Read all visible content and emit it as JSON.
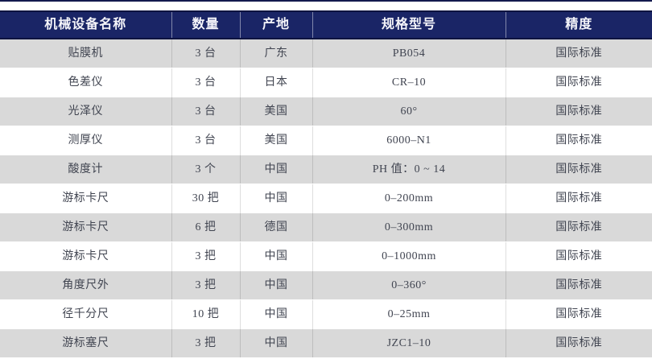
{
  "table": {
    "columns": [
      "机械设备名称",
      "数量",
      "产地",
      "规格型号",
      "精度"
    ],
    "rows": [
      [
        "贴膜机",
        "3 台",
        "广东",
        "PB054",
        "国际标准"
      ],
      [
        "色差仪",
        "3 台",
        "日本",
        "CR–10",
        "国际标准"
      ],
      [
        "光泽仪",
        "3 台",
        "美国",
        "60°",
        "国际标准"
      ],
      [
        "测厚仪",
        "3 台",
        "美国",
        "6000–N1",
        "国际标准"
      ],
      [
        "酸度计",
        "3 个",
        "中国",
        "PH 值：0 ~ 14",
        "国际标准"
      ],
      [
        "游标卡尺",
        "30 把",
        "中国",
        "0–200mm",
        "国际标准"
      ],
      [
        "游标卡尺",
        "6 把",
        "德国",
        "0–300mm",
        "国际标准"
      ],
      [
        "游标卡尺",
        "3 把",
        "中国",
        "0–1000mm",
        "国际标准"
      ],
      [
        "角度尺外",
        "3 把",
        "中国",
        "0–360°",
        "国际标准"
      ],
      [
        "径千分尺",
        "10 把",
        "中国",
        "0–25mm",
        "国际标准"
      ],
      [
        "游标塞尺",
        "3 把",
        "中国",
        "JZC1–10",
        "国际标准"
      ]
    ],
    "colors": {
      "header_background": "#1a2566",
      "header_border": "#0d1340",
      "header_text": "#f5f5fa",
      "row_alt_background": "#d9d9d9",
      "row_background": "#ffffff",
      "body_text": "#414551",
      "top_line": "#131a4e"
    }
  }
}
